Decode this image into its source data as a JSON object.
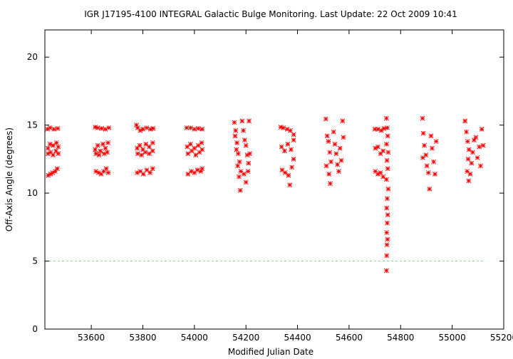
{
  "chart_data": {
    "type": "scatter",
    "title": "IGR J17195-4100   INTEGRAL Galactic Bulge Monitoring.  Last Update: 22 Oct 2009 10:41",
    "xlabel": "Modified Julian Date",
    "ylabel": "Off-Axis Angle (degrees)",
    "xlim": [
      53420,
      55200
    ],
    "ylim": [
      0,
      22
    ],
    "xticks": [
      53600,
      53800,
      54000,
      54200,
      54400,
      54600,
      54800,
      55000,
      55200
    ],
    "yticks": [
      0,
      5,
      10,
      15,
      20
    ],
    "grid": false,
    "marker_color": "#ff0000",
    "reference_line": {
      "y": 5,
      "x_range": [
        53420,
        55120
      ],
      "style": "dashed",
      "color": "#7fe07f"
    },
    "points": [
      {
        "x": 53430,
        "y": 14.7
      },
      {
        "x": 53440,
        "y": 14.8
      },
      {
        "x": 53455,
        "y": 14.7
      },
      {
        "x": 53470,
        "y": 14.75
      },
      {
        "x": 53432,
        "y": 13.3
      },
      {
        "x": 53440,
        "y": 13.6
      },
      {
        "x": 53452,
        "y": 13.5
      },
      {
        "x": 53465,
        "y": 13.7
      },
      {
        "x": 53472,
        "y": 13.4
      },
      {
        "x": 53432,
        "y": 12.9
      },
      {
        "x": 53442,
        "y": 13.0
      },
      {
        "x": 53452,
        "y": 12.8
      },
      {
        "x": 53463,
        "y": 13.1
      },
      {
        "x": 53472,
        "y": 12.9
      },
      {
        "x": 53433,
        "y": 11.3
      },
      {
        "x": 53442,
        "y": 11.4
      },
      {
        "x": 53450,
        "y": 11.5
      },
      {
        "x": 53460,
        "y": 11.6
      },
      {
        "x": 53468,
        "y": 11.8
      },
      {
        "x": 53615,
        "y": 14.85
      },
      {
        "x": 53625,
        "y": 14.8
      },
      {
        "x": 53640,
        "y": 14.75
      },
      {
        "x": 53655,
        "y": 14.7
      },
      {
        "x": 53668,
        "y": 14.8
      },
      {
        "x": 53615,
        "y": 13.2
      },
      {
        "x": 53625,
        "y": 13.5
      },
      {
        "x": 53635,
        "y": 13.1
      },
      {
        "x": 53645,
        "y": 13.6
      },
      {
        "x": 53655,
        "y": 13.3
      },
      {
        "x": 53665,
        "y": 13.7
      },
      {
        "x": 53618,
        "y": 12.9
      },
      {
        "x": 53630,
        "y": 12.8
      },
      {
        "x": 53650,
        "y": 12.9
      },
      {
        "x": 53662,
        "y": 13.0
      },
      {
        "x": 53618,
        "y": 11.6
      },
      {
        "x": 53628,
        "y": 11.5
      },
      {
        "x": 53638,
        "y": 11.4
      },
      {
        "x": 53648,
        "y": 11.6
      },
      {
        "x": 53658,
        "y": 11.8
      },
      {
        "x": 53666,
        "y": 11.5
      },
      {
        "x": 53775,
        "y": 15.0
      },
      {
        "x": 53780,
        "y": 14.8
      },
      {
        "x": 53790,
        "y": 14.6
      },
      {
        "x": 53800,
        "y": 14.7
      },
      {
        "x": 53815,
        "y": 14.8
      },
      {
        "x": 53830,
        "y": 14.7
      },
      {
        "x": 53840,
        "y": 14.75
      },
      {
        "x": 53778,
        "y": 13.3
      },
      {
        "x": 53788,
        "y": 13.5
      },
      {
        "x": 53800,
        "y": 13.2
      },
      {
        "x": 53812,
        "y": 13.6
      },
      {
        "x": 53825,
        "y": 13.4
      },
      {
        "x": 53838,
        "y": 13.7
      },
      {
        "x": 53780,
        "y": 12.9
      },
      {
        "x": 53795,
        "y": 12.8
      },
      {
        "x": 53810,
        "y": 13.0
      },
      {
        "x": 53825,
        "y": 12.9
      },
      {
        "x": 53838,
        "y": 13.1
      },
      {
        "x": 53778,
        "y": 11.5
      },
      {
        "x": 53790,
        "y": 11.6
      },
      {
        "x": 53802,
        "y": 11.4
      },
      {
        "x": 53815,
        "y": 11.7
      },
      {
        "x": 53828,
        "y": 11.5
      },
      {
        "x": 53838,
        "y": 11.8
      },
      {
        "x": 53970,
        "y": 14.8
      },
      {
        "x": 53985,
        "y": 14.8
      },
      {
        "x": 54000,
        "y": 14.7
      },
      {
        "x": 54015,
        "y": 14.75
      },
      {
        "x": 54030,
        "y": 14.7
      },
      {
        "x": 53972,
        "y": 13.4
      },
      {
        "x": 53985,
        "y": 13.6
      },
      {
        "x": 54000,
        "y": 13.3
      },
      {
        "x": 54015,
        "y": 13.5
      },
      {
        "x": 54028,
        "y": 13.7
      },
      {
        "x": 53975,
        "y": 12.9
      },
      {
        "x": 53990,
        "y": 13.1
      },
      {
        "x": 54005,
        "y": 12.8
      },
      {
        "x": 54020,
        "y": 13.0
      },
      {
        "x": 54030,
        "y": 13.2
      },
      {
        "x": 53975,
        "y": 11.4
      },
      {
        "x": 53988,
        "y": 11.6
      },
      {
        "x": 54000,
        "y": 11.5
      },
      {
        "x": 54012,
        "y": 11.7
      },
      {
        "x": 54025,
        "y": 11.6
      },
      {
        "x": 54030,
        "y": 11.8
      },
      {
        "x": 54155,
        "y": 15.2
      },
      {
        "x": 54160,
        "y": 14.6
      },
      {
        "x": 54165,
        "y": 13.7
      },
      {
        "x": 54170,
        "y": 12.9
      },
      {
        "x": 54175,
        "y": 12.3
      },
      {
        "x": 54180,
        "y": 11.6
      },
      {
        "x": 54158,
        "y": 14.2
      },
      {
        "x": 54163,
        "y": 13.2
      },
      {
        "x": 54168,
        "y": 12.0
      },
      {
        "x": 54173,
        "y": 11.2
      },
      {
        "x": 54178,
        "y": 10.2
      },
      {
        "x": 54185,
        "y": 15.3
      },
      {
        "x": 54190,
        "y": 14.6
      },
      {
        "x": 54195,
        "y": 13.9
      },
      {
        "x": 54200,
        "y": 13.5
      },
      {
        "x": 54205,
        "y": 12.8
      },
      {
        "x": 54210,
        "y": 12.2
      },
      {
        "x": 54192,
        "y": 11.4
      },
      {
        "x": 54200,
        "y": 10.8
      },
      {
        "x": 54208,
        "y": 11.6
      },
      {
        "x": 54215,
        "y": 12.9
      },
      {
        "x": 54212,
        "y": 15.3
      },
      {
        "x": 54335,
        "y": 14.85
      },
      {
        "x": 54345,
        "y": 14.8
      },
      {
        "x": 54360,
        "y": 14.7
      },
      {
        "x": 54372,
        "y": 14.6
      },
      {
        "x": 54385,
        "y": 14.3
      },
      {
        "x": 54338,
        "y": 13.4
      },
      {
        "x": 54350,
        "y": 13.1
      },
      {
        "x": 54362,
        "y": 13.6
      },
      {
        "x": 54375,
        "y": 13.2
      },
      {
        "x": 54385,
        "y": 13.9
      },
      {
        "x": 54340,
        "y": 11.7
      },
      {
        "x": 54352,
        "y": 11.5
      },
      {
        "x": 54365,
        "y": 11.3
      },
      {
        "x": 54370,
        "y": 10.6
      },
      {
        "x": 54378,
        "y": 11.9
      },
      {
        "x": 54385,
        "y": 12.5
      },
      {
        "x": 54510,
        "y": 15.45
      },
      {
        "x": 54515,
        "y": 14.2
      },
      {
        "x": 54520,
        "y": 13.8
      },
      {
        "x": 54525,
        "y": 13.0
      },
      {
        "x": 54530,
        "y": 12.3
      },
      {
        "x": 54522,
        "y": 11.4
      },
      {
        "x": 54527,
        "y": 10.7
      },
      {
        "x": 54540,
        "y": 14.5
      },
      {
        "x": 54545,
        "y": 13.6
      },
      {
        "x": 54550,
        "y": 12.9
      },
      {
        "x": 54555,
        "y": 12.1
      },
      {
        "x": 54560,
        "y": 11.6
      },
      {
        "x": 54565,
        "y": 13.3
      },
      {
        "x": 54570,
        "y": 12.4
      },
      {
        "x": 54575,
        "y": 15.3
      },
      {
        "x": 54578,
        "y": 14.1
      },
      {
        "x": 54512,
        "y": 12.0
      },
      {
        "x": 54700,
        "y": 14.7
      },
      {
        "x": 54712,
        "y": 14.7
      },
      {
        "x": 54725,
        "y": 14.6
      },
      {
        "x": 54735,
        "y": 14.75
      },
      {
        "x": 54702,
        "y": 13.3
      },
      {
        "x": 54712,
        "y": 13.4
      },
      {
        "x": 54722,
        "y": 12.9
      },
      {
        "x": 54732,
        "y": 13.1
      },
      {
        "x": 54702,
        "y": 11.6
      },
      {
        "x": 54712,
        "y": 11.4
      },
      {
        "x": 54722,
        "y": 11.5
      },
      {
        "x": 54732,
        "y": 11.2
      },
      {
        "x": 54745,
        "y": 15.5
      },
      {
        "x": 54748,
        "y": 14.8
      },
      {
        "x": 54750,
        "y": 14.2
      },
      {
        "x": 54745,
        "y": 13.6
      },
      {
        "x": 54752,
        "y": 13.0
      },
      {
        "x": 54747,
        "y": 12.4
      },
      {
        "x": 54750,
        "y": 11.8
      },
      {
        "x": 54745,
        "y": 11.0
      },
      {
        "x": 54752,
        "y": 10.3
      },
      {
        "x": 54748,
        "y": 9.6
      },
      {
        "x": 54746,
        "y": 8.9
      },
      {
        "x": 54750,
        "y": 8.4
      },
      {
        "x": 54748,
        "y": 7.8
      },
      {
        "x": 54746,
        "y": 7.1
      },
      {
        "x": 54749,
        "y": 6.6
      },
      {
        "x": 54747,
        "y": 6.2
      },
      {
        "x": 54746,
        "y": 5.4
      },
      {
        "x": 54745,
        "y": 4.3
      },
      {
        "x": 54885,
        "y": 15.5
      },
      {
        "x": 54888,
        "y": 14.4
      },
      {
        "x": 54892,
        "y": 13.5
      },
      {
        "x": 54898,
        "y": 12.8
      },
      {
        "x": 54902,
        "y": 12.0
      },
      {
        "x": 54886,
        "y": 12.6
      },
      {
        "x": 54908,
        "y": 11.5
      },
      {
        "x": 54912,
        "y": 10.3
      },
      {
        "x": 54918,
        "y": 14.2
      },
      {
        "x": 54922,
        "y": 13.3
      },
      {
        "x": 54928,
        "y": 12.3
      },
      {
        "x": 54933,
        "y": 11.4
      },
      {
        "x": 54938,
        "y": 13.8
      },
      {
        "x": 55050,
        "y": 15.3
      },
      {
        "x": 55055,
        "y": 14.5
      },
      {
        "x": 55060,
        "y": 13.8
      },
      {
        "x": 55065,
        "y": 13.2
      },
      {
        "x": 55062,
        "y": 12.5
      },
      {
        "x": 55058,
        "y": 11.6
      },
      {
        "x": 55064,
        "y": 10.9
      },
      {
        "x": 55070,
        "y": 11.4
      },
      {
        "x": 55075,
        "y": 12.2
      },
      {
        "x": 55080,
        "y": 13.0
      },
      {
        "x": 55085,
        "y": 13.9
      },
      {
        "x": 55092,
        "y": 14.1
      },
      {
        "x": 55098,
        "y": 12.6
      },
      {
        "x": 55105,
        "y": 13.4
      },
      {
        "x": 55110,
        "y": 12.0
      },
      {
        "x": 55115,
        "y": 14.7
      },
      {
        "x": 55120,
        "y": 13.5
      }
    ]
  }
}
